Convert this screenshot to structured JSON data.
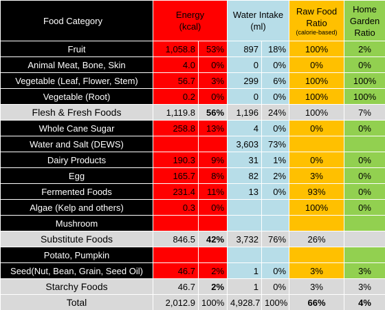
{
  "header": {
    "category": "Food Category",
    "energy": [
      "Energy",
      "(kcal)"
    ],
    "water": [
      "Water Intake",
      "(ml)"
    ],
    "raw": [
      "Raw Food",
      "Ratio",
      "(calorie-based)"
    ],
    "garden": [
      "Home",
      "Garden",
      "Ratio"
    ]
  },
  "table": {
    "rows": [
      [
        "Fruit",
        "1,058.8",
        "53%",
        "897",
        "18%",
        "100%",
        "2%"
      ],
      [
        "Animal Meat, Bone, Skin",
        "4.0",
        "0%",
        "0",
        "0%",
        "0%",
        "0%"
      ],
      [
        "Vegetable (Leaf, Flower, Stem)",
        "56.7",
        "3%",
        "299",
        "6%",
        "100%",
        "100%"
      ],
      [
        "Vegetable (Root)",
        "0.2",
        "0%",
        "0",
        "0%",
        "100%",
        "100%"
      ],
      [
        "Flesh & Fresh Foods",
        "1,119.8",
        "56%",
        "1,196",
        "24%",
        "100%",
        "7%"
      ],
      [
        "Whole Cane Sugar",
        "258.8",
        "13%",
        "4",
        "0%",
        "0%",
        "0%"
      ],
      [
        "Water and Salt (DEWS)",
        null,
        null,
        "3,603",
        "73%",
        null,
        null
      ],
      [
        "Dairy Products",
        "190.3",
        "9%",
        "31",
        "1%",
        "0%",
        "0%"
      ],
      [
        "Egg",
        "165.7",
        "8%",
        "82",
        "2%",
        "3%",
        "0%"
      ],
      [
        "Fermented Foods",
        "231.4",
        "11%",
        "13",
        "0%",
        "93%",
        "0%"
      ],
      [
        "Algae (Kelp and others)",
        "0.3",
        "0%",
        null,
        null,
        "100%",
        "0%"
      ],
      [
        "Mushroom",
        null,
        null,
        null,
        null,
        null,
        null
      ],
      [
        "Substitute Foods",
        "846.5",
        "42%",
        "3,732",
        "76%",
        "26%",
        null
      ],
      [
        "Potato, Pumpkin",
        null,
        null,
        null,
        null,
        null,
        null
      ],
      [
        "Seed(Nut, Bean, Grain, Seed Oil)",
        "46.7",
        "2%",
        "1",
        "0%",
        "3%",
        "3%"
      ],
      [
        "Starchy Foods",
        "46.7",
        "2%",
        "1",
        "0%",
        "3%",
        "3%"
      ],
      [
        "Total",
        "2,012.9",
        "100%",
        "4,928.7",
        "100%",
        "66%",
        "4%"
      ]
    ]
  }
}
